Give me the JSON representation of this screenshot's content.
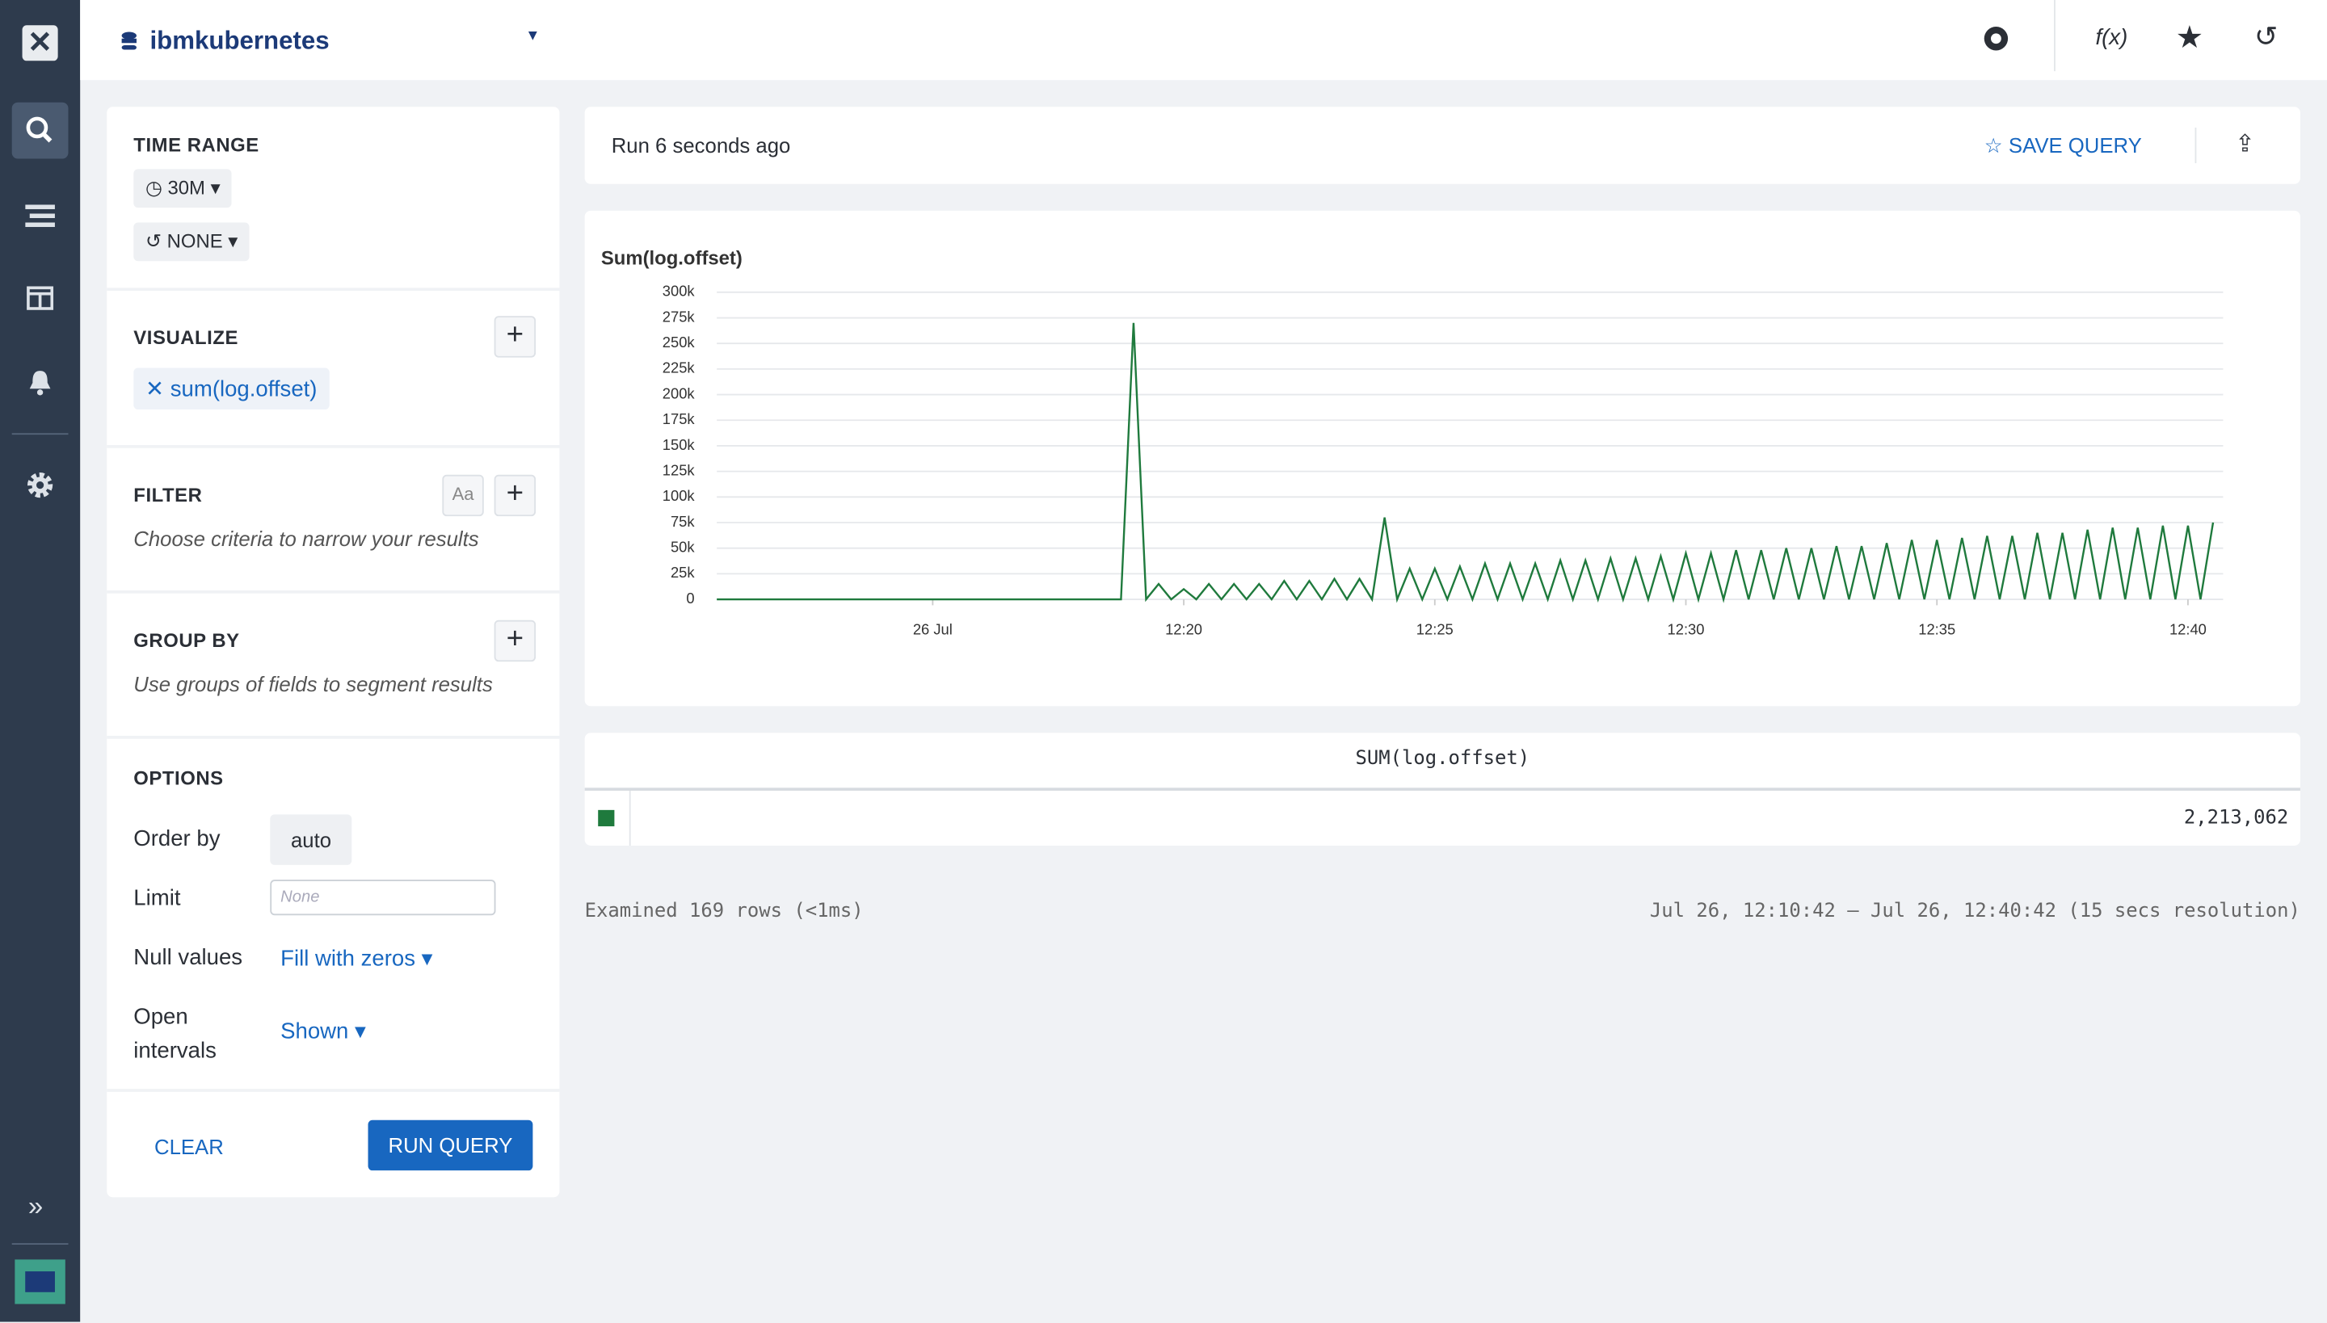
{
  "header": {
    "dataset": "ibmkubernetes",
    "functions": "f(x)"
  },
  "sidebar": {
    "time_range": {
      "title": "TIME RANGE",
      "range": "30M",
      "offset": "NONE"
    },
    "visualize": {
      "title": "VISUALIZE",
      "items": [
        "sum(log.offset)"
      ]
    },
    "filter": {
      "title": "FILTER",
      "case_toggle": "Aa",
      "hint": "Choose criteria to narrow your results"
    },
    "group_by": {
      "title": "GROUP BY",
      "hint": "Use groups of fields to segment results"
    },
    "options": {
      "title": "OPTIONS",
      "order_by": {
        "label": "Order by",
        "value": "auto"
      },
      "limit": {
        "label": "Limit",
        "placeholder": "None"
      },
      "null_values": {
        "label": "Null values",
        "value": "Fill with zeros"
      },
      "open_intervals": {
        "label": "Open intervals",
        "value": "Shown"
      }
    },
    "clear": "CLEAR",
    "run": "RUN QUERY"
  },
  "query_bar": {
    "status": "Run 6 seconds ago",
    "save": "SAVE QUERY"
  },
  "chart_data": {
    "type": "line",
    "y_label": "Sum(log.offset)",
    "x": [
      "12:10:42",
      "12:18:45",
      "12:19:00",
      "12:19:15",
      "12:19:30",
      "12:19:45",
      "12:20:00",
      "12:20:15",
      "12:20:30",
      "12:20:45",
      "12:21:00",
      "12:21:15",
      "12:21:30",
      "12:21:45",
      "12:22:00",
      "12:22:15",
      "12:22:30",
      "12:22:45",
      "12:23:00",
      "12:23:15",
      "12:23:30",
      "12:23:45",
      "12:24:00",
      "12:24:15",
      "12:24:30",
      "12:24:45",
      "12:25:00",
      "12:25:15",
      "12:25:30",
      "12:25:45",
      "12:26:00",
      "12:26:15",
      "12:26:30",
      "12:26:45",
      "12:27:00",
      "12:27:15",
      "12:27:30",
      "12:27:45",
      "12:28:00",
      "12:28:15",
      "12:28:30",
      "12:28:45",
      "12:29:00",
      "12:29:15",
      "12:29:30",
      "12:29:45",
      "12:30:00",
      "12:30:15",
      "12:30:30",
      "12:30:45",
      "12:31:00",
      "12:31:15",
      "12:31:30",
      "12:31:45",
      "12:32:00",
      "12:32:15",
      "12:32:30",
      "12:32:45",
      "12:33:00",
      "12:33:15",
      "12:33:30",
      "12:33:45",
      "12:34:00",
      "12:34:15",
      "12:34:30",
      "12:34:45",
      "12:35:00",
      "12:35:15",
      "12:35:30",
      "12:35:45",
      "12:36:00",
      "12:36:15",
      "12:36:30",
      "12:36:45",
      "12:37:00",
      "12:37:15",
      "12:37:30",
      "12:37:45",
      "12:38:00",
      "12:38:15",
      "12:38:30",
      "12:38:45",
      "12:39:00",
      "12:39:15",
      "12:39:30",
      "12:39:45",
      "12:40:00",
      "12:40:15",
      "12:40:30"
    ],
    "series": [
      {
        "name": "SUM(log.offset)",
        "color": "#1f7a3d",
        "values": [
          0,
          0,
          270000,
          0,
          15000,
          0,
          10000,
          0,
          15000,
          0,
          15000,
          0,
          15000,
          0,
          18000,
          0,
          18000,
          0,
          20000,
          0,
          20000,
          0,
          80000,
          0,
          30000,
          0,
          30000,
          0,
          32000,
          0,
          35000,
          0,
          35000,
          0,
          35000,
          0,
          38000,
          0,
          38000,
          0,
          40000,
          0,
          40000,
          0,
          42000,
          0,
          45000,
          0,
          45000,
          0,
          48000,
          0,
          48000,
          0,
          50000,
          0,
          50000,
          0,
          52000,
          0,
          52000,
          0,
          55000,
          0,
          58000,
          0,
          58000,
          0,
          60000,
          0,
          62000,
          0,
          62000,
          0,
          65000,
          0,
          65000,
          0,
          68000,
          0,
          70000,
          0,
          70000,
          0,
          72000,
          0,
          72000,
          0,
          75000
        ]
      }
    ],
    "xlim": [
      "12:10:42",
      "12:40:42"
    ],
    "xticks": [
      {
        "value": "12:15",
        "label": "26 Jul"
      },
      "12:20",
      "12:25",
      "12:30",
      "12:35",
      "12:40"
    ],
    "ylim": [
      0,
      300000
    ],
    "yticks": [
      0,
      {
        "value": 25000,
        "label": "25k"
      },
      {
        "value": 50000,
        "label": "50k"
      },
      {
        "value": 75000,
        "label": "75k"
      },
      {
        "value": 100000,
        "label": "100k"
      },
      {
        "value": 125000,
        "label": "125k"
      },
      {
        "value": 150000,
        "label": "150k"
      },
      {
        "value": 175000,
        "label": "175k"
      },
      {
        "value": 200000,
        "label": "200k"
      },
      {
        "value": 225000,
        "label": "225k"
      },
      {
        "value": 250000,
        "label": "250k"
      },
      {
        "value": 275000,
        "label": "275k"
      },
      {
        "value": 300000,
        "label": "300k"
      }
    ],
    "grid": true
  },
  "results": {
    "column": "SUM(log.offset)",
    "total": "2,213,062"
  },
  "footer": {
    "examined": "Examined 169 rows (<1ms)",
    "range": "Jul 26, 12:10:42 – Jul 26, 12:40:42 (15 secs resolution)"
  }
}
